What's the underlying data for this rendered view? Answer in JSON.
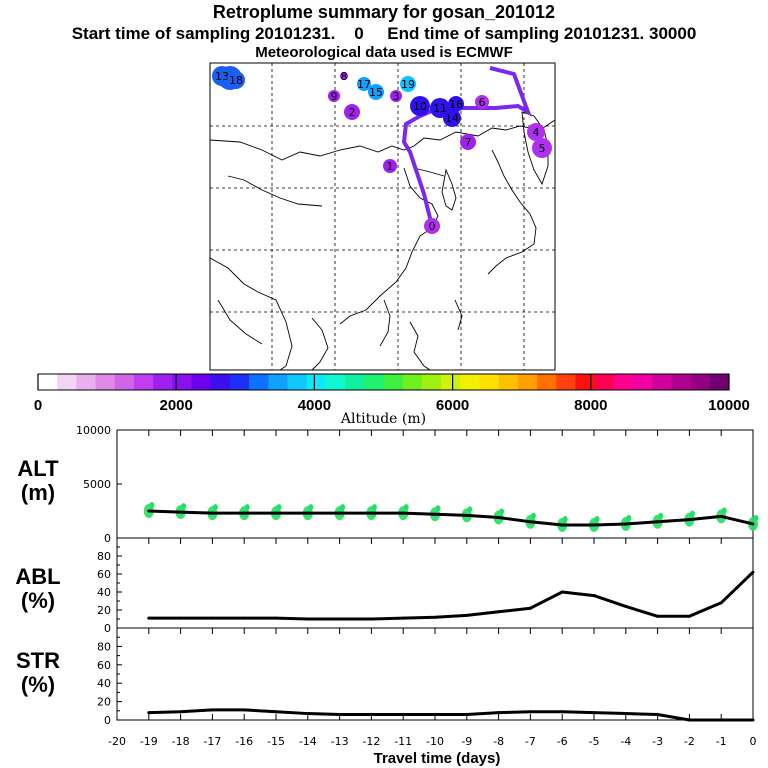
{
  "header": {
    "title": "Retroplume summary for gosan_201012",
    "subtitle": "Start time of sampling 20101231.    0     End time of sampling 20101231. 30000",
    "met_note": "Meteorological data used is ECMWF"
  },
  "colorbar": {
    "label": "Altitude (m)",
    "ticks": [
      "0",
      "2000",
      "4000",
      "6000",
      "8000",
      "10000"
    ],
    "colors": [
      "#ffffff",
      "#f4d4f4",
      "#eab0ee",
      "#df8ae8",
      "#d264ea",
      "#c03ef0",
      "#a020f0",
      "#8a10f0",
      "#6a00ee",
      "#3a10ee",
      "#1a30f8",
      "#1070ff",
      "#10a0ff",
      "#10c8ff",
      "#10e8f8",
      "#10f8d0",
      "#10f0a0",
      "#20f070",
      "#40f040",
      "#70f020",
      "#a0f010",
      "#d0f010",
      "#f0f000",
      "#ffe000",
      "#ffc000",
      "#ffa000",
      "#ff7000",
      "#ff4010",
      "#ff1010",
      "#ff0050",
      "#ff0090",
      "#f000a0",
      "#d000a0",
      "#b00090",
      "#900080",
      "#700070"
    ]
  },
  "map": {
    "markers": [
      {
        "label": "12",
        "color": "#1a5ff0"
      },
      {
        "label": "13",
        "color": "#1a5ff0"
      },
      {
        "label": "18",
        "color": "#1a5ff0"
      },
      {
        "label": "8",
        "color": "#a020f0"
      },
      {
        "label": "9",
        "color": "#a020f0"
      },
      {
        "label": "17",
        "color": "#10a0ff"
      },
      {
        "label": "15",
        "color": "#10a0ff"
      },
      {
        "label": "19",
        "color": "#10c0ff"
      },
      {
        "label": "2",
        "color": "#a020f0"
      },
      {
        "label": "3",
        "color": "#a020f0"
      },
      {
        "label": "6",
        "color": "#b030f0"
      },
      {
        "label": "7",
        "color": "#a020f0"
      },
      {
        "label": "4",
        "color": "#b030f0"
      },
      {
        "label": "5",
        "color": "#b030f0"
      },
      {
        "label": "1",
        "color": "#a020f0"
      },
      {
        "label": "10",
        "color": "#3010ee"
      },
      {
        "label": "11",
        "color": "#3010ee"
      },
      {
        "label": "14",
        "color": "#3010ee"
      },
      {
        "label": "16",
        "color": "#3010ee"
      },
      {
        "label": "0",
        "color": "#b030f0"
      }
    ]
  },
  "chart_data": [
    {
      "type": "line",
      "name": "ALT",
      "ylabel": "ALT\n(m)",
      "ylabel_lines": [
        "ALT",
        "(m)"
      ],
      "x": [
        -19,
        -18,
        -17,
        -16,
        -15,
        -14,
        -13,
        -12,
        -11,
        -10,
        -9,
        -8,
        -7,
        -6,
        -5,
        -4,
        -3,
        -2,
        -1,
        0
      ],
      "values": [
        2500,
        2400,
        2300,
        2300,
        2300,
        2300,
        2300,
        2300,
        2300,
        2200,
        2100,
        1900,
        1500,
        1200,
        1200,
        1300,
        1500,
        1700,
        2000,
        1300
      ],
      "ylim": [
        0,
        10000
      ],
      "yticks": [
        "0",
        "5000",
        "10000"
      ],
      "scatter_color": "#20e060"
    },
    {
      "type": "line",
      "name": "ABL",
      "ylabel": "ABL\n(%)",
      "ylabel_lines": [
        "ABL",
        "(%)"
      ],
      "x": [
        -19,
        -18,
        -17,
        -16,
        -15,
        -14,
        -13,
        -12,
        -11,
        -10,
        -9,
        -8,
        -7,
        -6,
        -5,
        -4,
        -3,
        -2,
        -1,
        0
      ],
      "values": [
        11,
        11,
        11,
        11,
        11,
        10,
        10,
        10,
        11,
        12,
        14,
        18,
        22,
        40,
        36,
        24,
        13,
        13,
        28,
        62
      ],
      "ylim": [
        0,
        100
      ],
      "yticks": [
        "0",
        "20",
        "40",
        "60",
        "80"
      ]
    },
    {
      "type": "line",
      "name": "STR",
      "ylabel": "STR\n(%)",
      "ylabel_lines": [
        "STR",
        "(%)"
      ],
      "x": [
        -19,
        -18,
        -17,
        -16,
        -15,
        -14,
        -13,
        -12,
        -11,
        -10,
        -9,
        -8,
        -7,
        -6,
        -5,
        -4,
        -3,
        -2,
        -1,
        0
      ],
      "values": [
        8,
        9,
        11,
        11,
        9,
        7,
        6,
        6,
        6,
        6,
        6,
        8,
        9,
        9,
        8,
        7,
        6,
        0,
        0,
        0
      ],
      "ylim": [
        0,
        100
      ],
      "yticks": [
        "0",
        "20",
        "40",
        "60",
        "80"
      ]
    }
  ],
  "xaxis": {
    "label": "Travel time (days)",
    "ticks": [
      "-20",
      "-19",
      "-18",
      "-17",
      "-16",
      "-15",
      "-14",
      "-13",
      "-12",
      "-11",
      "-10",
      "-9",
      "-8",
      "-7",
      "-6",
      "-5",
      "-4",
      "-3",
      "-2",
      "-1",
      "0"
    ]
  }
}
